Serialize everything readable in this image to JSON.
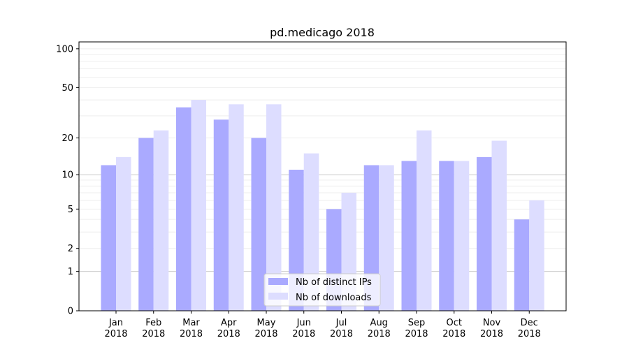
{
  "chart_data": {
    "type": "bar",
    "title": "pd.medicago 2018",
    "xlabel": "",
    "ylabel": "",
    "yscale": "symlog",
    "ylim": [
      0,
      113
    ],
    "yticks": [
      0,
      1,
      2,
      5,
      10,
      20,
      50,
      100
    ],
    "categories": [
      "Jan\n2018",
      "Feb\n2018",
      "Mar\n2018",
      "Apr\n2018",
      "May\n2018",
      "Jun\n2018",
      "Jul\n2018",
      "Aug\n2018",
      "Sep\n2018",
      "Oct\n2018",
      "Nov\n2018",
      "Dec\n2018"
    ],
    "series": [
      {
        "name": "Nb of distinct IPs",
        "color": "#aaaaff",
        "values": [
          12,
          20,
          35,
          28,
          20,
          11,
          5,
          12,
          13,
          13,
          14,
          4
        ]
      },
      {
        "name": "Nb of downloads",
        "color": "#ddddff",
        "values": [
          14,
          23,
          40,
          37,
          37,
          15,
          7,
          12,
          23,
          13,
          19,
          6
        ]
      }
    ],
    "grid": true,
    "legend": "bottom-center"
  }
}
